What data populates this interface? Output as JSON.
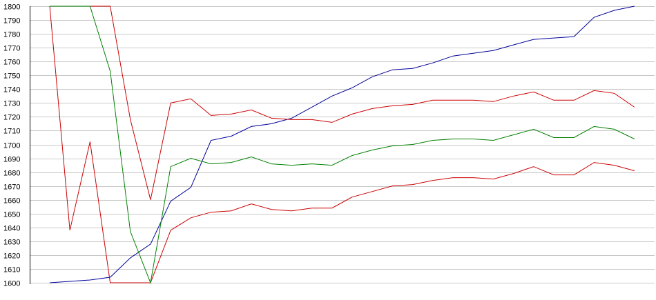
{
  "chart_data": {
    "type": "line",
    "title": "",
    "xlabel": "",
    "ylabel": "",
    "ylim": [
      1600,
      1800
    ],
    "ytick_step": 10,
    "grid": true,
    "legend": "none",
    "x": [
      1,
      2,
      3,
      4,
      5,
      6,
      7,
      8,
      9,
      10,
      11,
      12,
      13,
      14,
      15,
      16,
      17,
      18,
      19,
      20,
      21,
      22,
      23,
      24,
      25,
      26,
      27,
      28,
      29,
      30
    ],
    "series": [
      {
        "color": "#000099",
        "values": [
          1600,
          1601,
          1602,
          1604,
          1618,
          1628,
          1659,
          1669,
          1703,
          1706,
          1713,
          1715,
          1719,
          1727,
          1735,
          1741,
          1749,
          1754,
          1755,
          1759,
          1764,
          1766,
          1768,
          1772,
          1776,
          1777,
          1778,
          1792,
          1797,
          1800
        ]
      },
      {
        "color": "#cc0000",
        "values": [
          1800,
          1638,
          1702,
          1600,
          1600,
          1600,
          1638,
          1647,
          1651,
          1652,
          1657,
          1653,
          1652,
          1654,
          1654,
          1662,
          1666,
          1670,
          1671,
          1674,
          1676,
          1676,
          1675,
          1679,
          1684,
          1678,
          1678,
          1687,
          1685,
          1681
        ]
      },
      {
        "color": "#cc0000",
        "values": [
          1800,
          1800,
          1800,
          1800,
          1718,
          1660,
          1730,
          1733,
          1721,
          1722,
          1725,
          1719,
          1718,
          1718,
          1716,
          1722,
          1726,
          1728,
          1729,
          1732,
          1732,
          1732,
          1731,
          1735,
          1738,
          1732,
          1732,
          1739,
          1737,
          1727
        ]
      },
      {
        "color": "#008000",
        "values": [
          1800,
          1800,
          1800,
          1753,
          1637,
          1600,
          1684,
          1690,
          1686,
          1687,
          1691,
          1686,
          1685,
          1686,
          1685,
          1692,
          1696,
          1699,
          1700,
          1703,
          1704,
          1704,
          1703,
          1707,
          1711,
          1705,
          1705,
          1713,
          1711,
          1704
        ]
      }
    ]
  }
}
